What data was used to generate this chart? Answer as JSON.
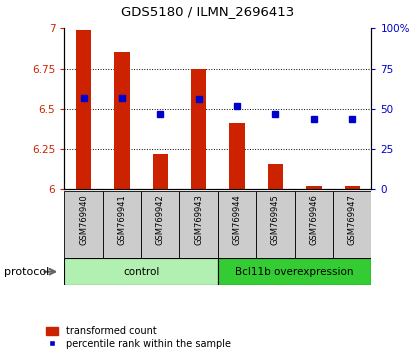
{
  "title": "GDS5180 / ILMN_2696413",
  "samples": [
    "GSM769940",
    "GSM769941",
    "GSM769942",
    "GSM769943",
    "GSM769944",
    "GSM769945",
    "GSM769946",
    "GSM769947"
  ],
  "red_values": [
    6.99,
    6.85,
    6.22,
    6.75,
    6.41,
    6.16,
    6.02,
    6.02
  ],
  "blue_values": [
    57,
    57,
    47,
    56,
    52,
    47,
    44,
    44
  ],
  "ylim_left": [
    6.0,
    7.0
  ],
  "ylim_right": [
    0,
    100
  ],
  "yticks_left": [
    6.0,
    6.25,
    6.5,
    6.75,
    7.0
  ],
  "yticks_right": [
    0,
    25,
    50,
    75,
    100
  ],
  "ytick_labels_left": [
    "6",
    "6.25",
    "6.5",
    "6.75",
    "7"
  ],
  "ytick_labels_right": [
    "0",
    "25",
    "50",
    "75",
    "100%"
  ],
  "grid_lines": [
    6.25,
    6.5,
    6.75
  ],
  "groups": [
    {
      "label": "control",
      "start": 0,
      "end": 4,
      "color": "#b2f0b2"
    },
    {
      "label": "Bcl11b overexpression",
      "start": 4,
      "end": 8,
      "color": "#33cc33"
    }
  ],
  "protocol_label": "protocol",
  "red_color": "#cc2200",
  "blue_color": "#0000cc",
  "bar_width": 0.4,
  "plot_bg_color": "#ffffff",
  "legend_red": "transformed count",
  "legend_blue": "percentile rank within the sample",
  "tick_bg_color": "#cccccc",
  "baseline": 6.0
}
